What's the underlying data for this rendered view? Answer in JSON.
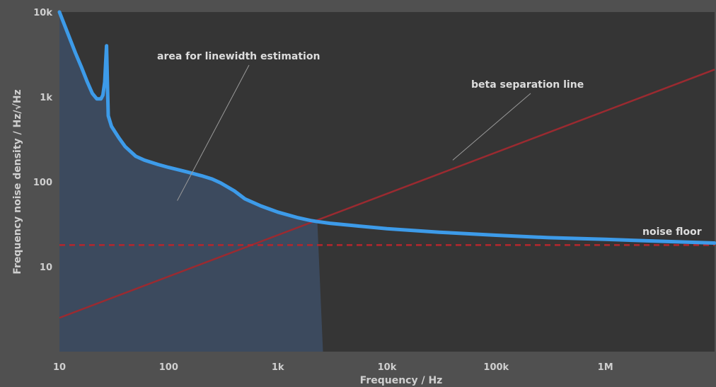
{
  "chart_data": {
    "type": "line",
    "xlabel": "Frequency / Hz",
    "ylabel": "Frequency noise density / Hz/√Hz",
    "x_scale": "log",
    "y_scale": "log",
    "xlim": [
      10,
      10000000
    ],
    "ylim": [
      1,
      10000
    ],
    "x_ticks": [
      {
        "value": 10,
        "label": "10"
      },
      {
        "value": 100,
        "label": "100"
      },
      {
        "value": 1000,
        "label": "1k"
      },
      {
        "value": 10000,
        "label": "10k"
      },
      {
        "value": 100000,
        "label": "100k"
      },
      {
        "value": 1000000,
        "label": "1M"
      }
    ],
    "y_ticks": [
      {
        "value": 10,
        "label": "10"
      },
      {
        "value": 100,
        "label": "100"
      },
      {
        "value": 1000,
        "label": "1k"
      },
      {
        "value": 10000,
        "label": "10k"
      }
    ],
    "grid": false,
    "colors": {
      "background": "#505050",
      "plot_area": "#353535",
      "noise_curve": "#3d9be9",
      "shaded_area": "#3c4a5e",
      "beta_line": "#9b2a30",
      "dashed_line": "#b5262d"
    },
    "series": [
      {
        "name": "",
        "role": "frequency noise density",
        "x": [
          10,
          12,
          14,
          16,
          18,
          20,
          22,
          24,
          25,
          26,
          26.5,
          27,
          27.5,
          28,
          30,
          35,
          40,
          50,
          60,
          80,
          100,
          150,
          200,
          250,
          300,
          400,
          500,
          700,
          1000,
          1500,
          2000,
          2300,
          3000,
          5000,
          10000,
          30000,
          100000,
          300000,
          1000000,
          3000000,
          10000000
        ],
        "y": [
          10000,
          5500,
          3300,
          2200,
          1500,
          1100,
          950,
          950,
          1050,
          1500,
          2500,
          4000,
          1500,
          600,
          450,
          330,
          260,
          200,
          180,
          160,
          148,
          130,
          118,
          108,
          97,
          78,
          63,
          52,
          44,
          38,
          35,
          34,
          32.5,
          30.5,
          28,
          25.5,
          23.5,
          22,
          21,
          20,
          19
        ]
      },
      {
        "name": "",
        "role": "beta separation line",
        "x": [
          10,
          10000000
        ],
        "y": [
          2.5,
          2100
        ]
      },
      {
        "name": "",
        "role": "noise floor (dashed)",
        "x": [
          10,
          10000000
        ],
        "y": [
          18,
          18
        ]
      }
    ],
    "shaded_region": {
      "label": "area for linewidth estimation",
      "x_range": [
        10,
        2300
      ]
    },
    "annotations": [
      {
        "id": "area",
        "text": "area for linewidth estimation",
        "pointer_to": [
          120,
          60
        ]
      },
      {
        "id": "beta",
        "text": "beta separation line",
        "pointer_to": [
          40000,
          180
        ]
      },
      {
        "id": "floor",
        "text": "noise floor"
      }
    ]
  }
}
